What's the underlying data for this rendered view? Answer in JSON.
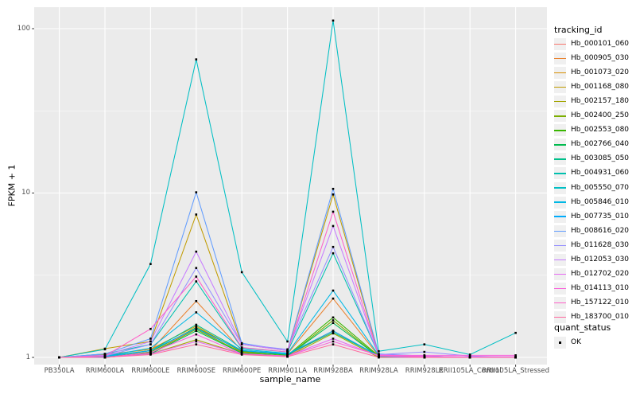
{
  "figure": {
    "background": "#FFFFFF",
    "panel_background": "#EBEBEB",
    "grid_color": "#FFFFFF",
    "tick_color": "#333333",
    "tick_label_color": "#4D4D4D",
    "point_color": "#000000"
  },
  "x_axis": {
    "title": "sample_name"
  },
  "y_axis": {
    "title": "FPKM + 1",
    "tick_labels": [
      "100",
      "10",
      "1"
    ],
    "tick_values": [
      100,
      10,
      1
    ],
    "minor_values": [
      3.16228,
      31.6228
    ]
  },
  "legend": {
    "tracking_title": "tracking_id",
    "quant_title": "quant_status",
    "quant_items": [
      {
        "label": "OK"
      }
    ]
  },
  "chart_data": {
    "type": "line",
    "title": "",
    "xlabel": "sample_name",
    "ylabel": "FPKM + 1",
    "yscale": "log10",
    "ylim": [
      0.92,
      135
    ],
    "grid": true,
    "legend_position": "right",
    "point_shape": "black-square",
    "x": [
      "PB350LA",
      "RRIM600LA",
      "RRIM600LE",
      "RRIM600SE",
      "RRIM600PE",
      "RRIM901LA",
      "RRIM928BA",
      "RRIM928LA",
      "RRIM928LE",
      "RRII105LA_Control",
      "RRII105LA_Stressed"
    ],
    "series": [
      {
        "name": "Hb_000101_060",
        "color": "#F8766D",
        "values": [
          1,
          1.01,
          1.06,
          1.5,
          1.06,
          1.02,
          1.45,
          1.01,
          1,
          1,
          1
        ]
      },
      {
        "name": "Hb_000905_030",
        "color": "#EA8331",
        "values": [
          1,
          1.01,
          1.1,
          2.2,
          1.1,
          1.05,
          2.28,
          1.02,
          1,
          1,
          1
        ]
      },
      {
        "name": "Hb_001073_020",
        "color": "#D89000",
        "values": [
          1,
          1.04,
          1.12,
          1.55,
          1.08,
          1.04,
          1.45,
          1.02,
          1,
          1,
          1
        ]
      },
      {
        "name": "Hb_001168_080",
        "color": "#C09B00",
        "values": [
          1,
          1.13,
          1.25,
          7.4,
          1.2,
          1.1,
          9.8,
          1.04,
          1.01,
          1,
          1
        ]
      },
      {
        "name": "Hb_002157_180",
        "color": "#A3A500",
        "values": [
          1,
          1,
          1.05,
          1.28,
          1.05,
          1.01,
          1.4,
          1,
          1,
          1,
          1
        ]
      },
      {
        "name": "Hb_002400_250",
        "color": "#7CAE00",
        "values": [
          1,
          1,
          1.06,
          1.48,
          1.07,
          1.02,
          1.68,
          1.01,
          1,
          1,
          1
        ]
      },
      {
        "name": "Hb_002553_080",
        "color": "#39B600",
        "values": [
          1,
          1,
          1.08,
          1.52,
          1.09,
          1.03,
          1.75,
          1.02,
          1,
          1,
          1
        ]
      },
      {
        "name": "Hb_002766_040",
        "color": "#00BB4E",
        "values": [
          1,
          1,
          1.05,
          1.45,
          1.06,
          1.02,
          1.62,
          1.01,
          1,
          1,
          1
        ]
      },
      {
        "name": "Hb_003085_050",
        "color": "#00C08B",
        "values": [
          1,
          1.02,
          1.1,
          1.58,
          1.1,
          1.04,
          1.42,
          1.02,
          1,
          1,
          1
        ]
      },
      {
        "name": "Hb_004931_060",
        "color": "#00C0AF",
        "values": [
          1,
          1.05,
          1.2,
          2.9,
          1.14,
          1.08,
          4.3,
          1.04,
          1.02,
          1,
          1
        ]
      },
      {
        "name": "Hb_005550_070",
        "color": "#00BFC4",
        "values": [
          1,
          1.12,
          3.7,
          65,
          3.3,
          1.25,
          112,
          1.09,
          1.2,
          1.04,
          1.41
        ]
      },
      {
        "name": "Hb_005846_010",
        "color": "#00B8E5",
        "values": [
          1,
          1.02,
          1.14,
          1.88,
          1.12,
          1.06,
          2.55,
          1.03,
          1,
          1,
          1
        ]
      },
      {
        "name": "Hb_007735_010",
        "color": "#00ACFC",
        "values": [
          1,
          1.01,
          1.1,
          1.5,
          1.1,
          1.05,
          1.45,
          1.02,
          1,
          1,
          1
        ]
      },
      {
        "name": "Hb_008616_020",
        "color": "#619CFF",
        "values": [
          1,
          1.05,
          1.3,
          10.1,
          1.22,
          1.1,
          10.6,
          1.05,
          1.02,
          1,
          1
        ]
      },
      {
        "name": "Hb_011628_030",
        "color": "#9590FF",
        "values": [
          1,
          1.02,
          1.2,
          3.5,
          1.2,
          1.12,
          4.7,
          1.04,
          1.08,
          1.02,
          1
        ]
      },
      {
        "name": "Hb_012053_030",
        "color": "#C77CFF",
        "values": [
          1,
          1.03,
          1.25,
          4.4,
          1.2,
          1.1,
          6.3,
          1.04,
          1.02,
          1,
          1
        ]
      },
      {
        "name": "Hb_012702_020",
        "color": "#E76BF3",
        "values": [
          1,
          1,
          1.05,
          1.25,
          1.05,
          1.02,
          1.3,
          1.02,
          1.01,
          1.01,
          1.01
        ]
      },
      {
        "name": "Hb_014113_010",
        "color": "#FA62DB",
        "values": [
          1,
          1,
          1.07,
          1.38,
          1.05,
          1.02,
          1.25,
          1.03,
          1.03,
          1.03,
          1.03
        ]
      },
      {
        "name": "Hb_157122_010",
        "color": "#FF61C9",
        "values": [
          1,
          1.02,
          1.49,
          3.1,
          1.15,
          1.08,
          7.7,
          1.03,
          1.01,
          1,
          1
        ]
      },
      {
        "name": "Hb_183700_010",
        "color": "#FF689E",
        "values": [
          1,
          1,
          1.04,
          1.2,
          1.04,
          1.01,
          1.2,
          1,
          1,
          1,
          1
        ]
      }
    ]
  }
}
